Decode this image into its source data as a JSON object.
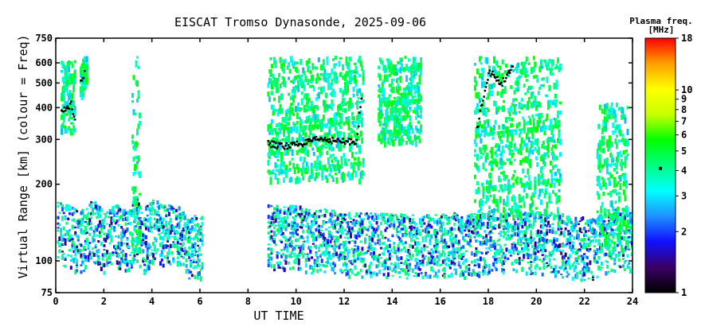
{
  "chart_data": {
    "type": "heatmap",
    "title": "EISCAT Tromso Dynasonde, 2025-09-06",
    "xlabel": "UT TIME",
    "ylabel": "Virtual Range [km] (colour = Freq)",
    "x_ticks": [
      0,
      2,
      4,
      6,
      8,
      10,
      12,
      14,
      16,
      18,
      20,
      22,
      24
    ],
    "xlim": [
      0,
      24
    ],
    "y_scale": "log",
    "y_ticks": [
      75,
      100,
      200,
      300,
      400,
      500,
      600,
      750
    ],
    "ylim": [
      75,
      750
    ],
    "colorbar": {
      "title_line1": "Plasma freq.",
      "title_line2": "[MHz]",
      "scale": "log",
      "range": [
        1,
        18
      ],
      "ticks": [
        1,
        2,
        3,
        4,
        5,
        6,
        7,
        8,
        9,
        10,
        18
      ],
      "colors": [
        "#000000",
        "#3a0066",
        "#1010ff",
        "#1e90ff",
        "#00ffff",
        "#00ff80",
        "#00ff00",
        "#c8ff00",
        "#ffff00",
        "#ffa000",
        "#ff0000"
      ]
    },
    "series": [
      {
        "x": [
          0.0,
          0.5,
          1.0,
          1.5,
          2.0,
          2.5,
          3.0,
          3.3,
          3.6,
          4.0,
          4.5,
          5.0,
          5.5,
          6.0,
          8.8,
          9.5,
          10.0,
          10.5,
          11.0,
          11.5,
          12.0,
          12.5,
          13.0,
          13.5,
          14.0,
          14.5,
          15.0,
          15.5,
          16.0,
          16.5,
          17.0,
          17.5,
          18.0,
          18.5,
          19.0,
          19.5,
          20.0,
          20.5,
          21.0,
          21.5,
          22.0,
          22.5,
          23.0,
          23.5,
          23.9
        ],
        "y": [
          110,
          105,
          100,
          110,
          100,
          105,
          100,
          115,
          100,
          110,
          105,
          110,
          95,
          95,
          105,
          103,
          105,
          100,
          102,
          100,
          98,
          97,
          97,
          97,
          97,
          96,
          95,
          96,
          97,
          98,
          95,
          98,
          100,
          100,
          102,
          100,
          98,
          98,
          97,
          96,
          93,
          95,
          100,
          105,
          100
        ]
      }
    ],
    "f2_traces": [
      {
        "x": [
          0.2,
          0.4,
          0.6,
          0.8
        ],
        "y": [
          390,
          400,
          420,
          350
        ]
      },
      {
        "x": [
          1.0,
          1.2
        ],
        "y": [
          520,
          560
        ]
      },
      {
        "x": [
          8.8,
          9.5,
          10.0,
          10.5,
          11.0,
          11.5,
          12.0,
          12.5,
          12.7
        ],
        "y": [
          290,
          285,
          290,
          295,
          305,
          300,
          295,
          300,
          450
        ]
      },
      {
        "x": [
          17.5,
          18.0,
          18.5,
          19.0
        ],
        "y": [
          330,
          560,
          500,
          580
        ]
      }
    ]
  }
}
